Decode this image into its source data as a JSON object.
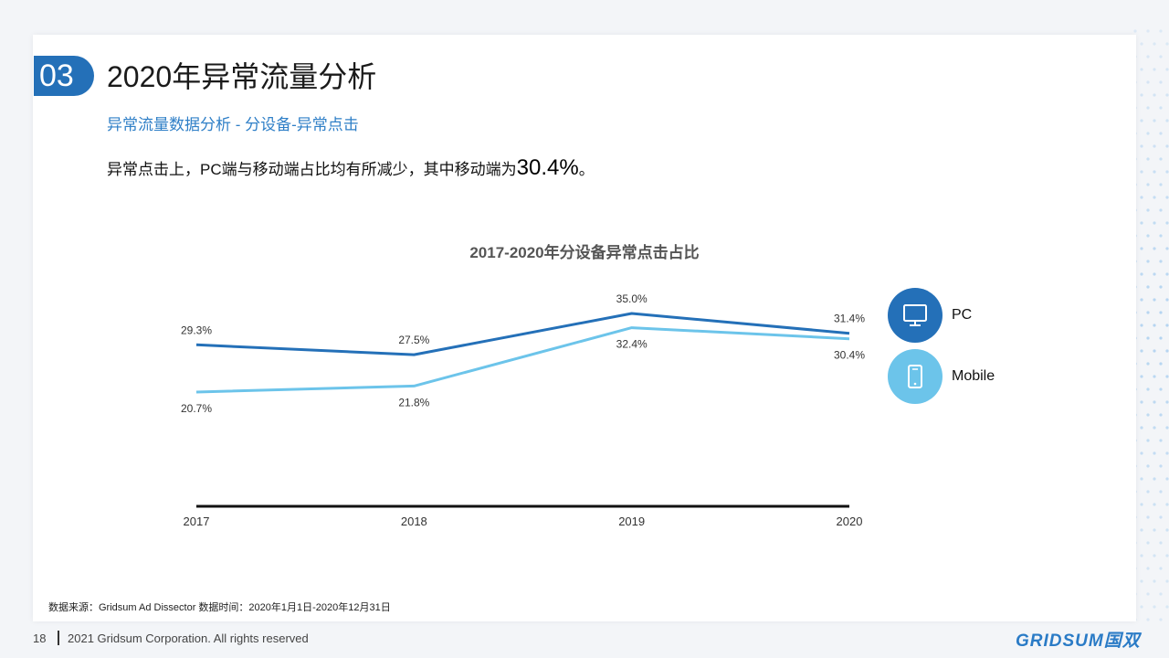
{
  "section": {
    "number": "03",
    "title": "2020年异常流量分析"
  },
  "subtitle": "异常流量数据分析 - 分设备-异常点击",
  "summary": {
    "text": "异常点击上，PC端与移动端占比均有所减少，其中移动端为",
    "highlight": "30.4%",
    "end": "。"
  },
  "chart_data": {
    "type": "line",
    "title": "2017-2020年分设备异常点击占比",
    "categories": [
      "2017",
      "2018",
      "2019",
      "2020"
    ],
    "series": [
      {
        "name": "PC",
        "color": "#2470b8",
        "values": [
          29.3,
          27.5,
          35.0,
          31.4
        ],
        "labels": [
          "29.3%",
          "27.5%",
          "35.0%",
          "31.4%"
        ]
      },
      {
        "name": "Mobile",
        "color": "#6cc4ea",
        "values": [
          20.7,
          21.8,
          32.4,
          30.4
        ],
        "labels": [
          "20.7%",
          "21.8%",
          "32.4%",
          "30.4%"
        ]
      }
    ],
    "legend_position": "right"
  },
  "legend": [
    {
      "label": "PC",
      "icon": "monitor-icon",
      "color": "#2470b8"
    },
    {
      "label": "Mobile",
      "icon": "tablet-icon",
      "color": "#6cc4ea"
    }
  ],
  "source": "数据来源：Gridsum Ad Dissector 数据时间：2020年1月1日-2020年12月31日",
  "footer": {
    "page": "18",
    "copyright": "2021 Gridsum Corporation. All rights reserved",
    "logo": "GRIDSUM国双"
  }
}
